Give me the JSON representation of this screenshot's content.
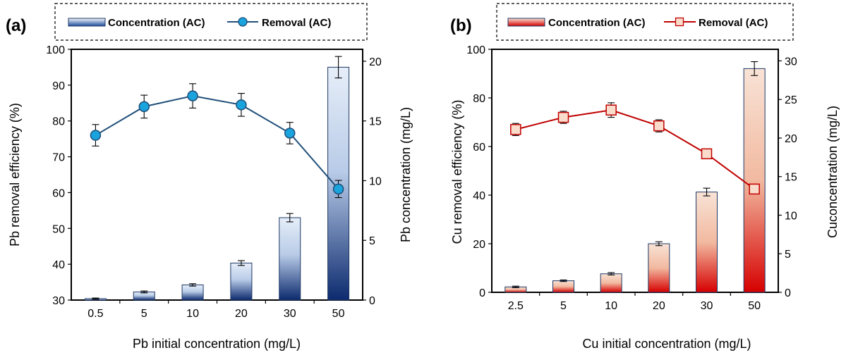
{
  "chart_data": [
    {
      "type": "bar+line",
      "panel_label": "(a)",
      "categories": [
        "0.5",
        "5",
        "10",
        "20",
        "30",
        "50"
      ],
      "xlabel": "Pb initial concentration (mg/L)",
      "ylabel_left": "Pb removal efficiency (%)",
      "ylabel_right": "Pb concentration (mg/L)",
      "ylim_left": [
        30,
        100
      ],
      "yticks_left": [
        30,
        40,
        50,
        60,
        70,
        80,
        90,
        100
      ],
      "ylim_right": [
        0,
        21
      ],
      "yticks_right": [
        0,
        5,
        10,
        15,
        20
      ],
      "legend_placement": "top",
      "series": [
        {
          "name": "Concentration (AC)",
          "kind": "bar",
          "axis": "right",
          "values": [
            0.12,
            0.68,
            1.27,
            3.1,
            6.9,
            19.5
          ],
          "errors": [
            0.05,
            0.08,
            0.1,
            0.2,
            0.35,
            0.9
          ],
          "color_top": "#e6eef9",
          "color_bottom": "#0c2a6e"
        },
        {
          "name": "Removal (AC)",
          "kind": "line",
          "axis": "left",
          "values": [
            76,
            84,
            87,
            84.5,
            76.6,
            61
          ],
          "errors": [
            3,
            3.2,
            3.4,
            3.2,
            3,
            2.4
          ],
          "line_color": "#1f4e79",
          "marker": "circle",
          "marker_fill": "#1aa3dc"
        }
      ]
    },
    {
      "type": "bar+line",
      "panel_label": "(b)",
      "categories": [
        "2.5",
        "5",
        "10",
        "20",
        "30",
        "50"
      ],
      "xlabel": "Cu initial concentration (mg/L)",
      "ylabel_left": "Cu removal efficiency (%)",
      "ylabel_right": "Cuconcentration (mg/L)",
      "ylim_left": [
        0,
        100
      ],
      "yticks_left": [
        0,
        20,
        40,
        60,
        80,
        100
      ],
      "ylim_right": [
        0,
        31.5
      ],
      "yticks_right": [
        0,
        5,
        10,
        15,
        20,
        25,
        30
      ],
      "legend_placement": "top",
      "series": [
        {
          "name": "Concentration (AC)",
          "kind": "bar",
          "axis": "right",
          "values": [
            0.7,
            1.5,
            2.4,
            6.3,
            13.0,
            29.0
          ],
          "errors": [
            0.1,
            0.1,
            0.15,
            0.25,
            0.5,
            0.9
          ],
          "color_top": "#f8e3d6",
          "color_bottom": "#d60000"
        },
        {
          "name": "Removal (AC)",
          "kind": "line",
          "axis": "left",
          "values": [
            67,
            72,
            75,
            68.5,
            57,
            42.5
          ],
          "errors": [
            2.5,
            2.5,
            3,
            2.5,
            1.5,
            0.8
          ],
          "line_color": "#c00000",
          "marker": "square",
          "marker_fill": "#f9dccb"
        }
      ]
    }
  ]
}
